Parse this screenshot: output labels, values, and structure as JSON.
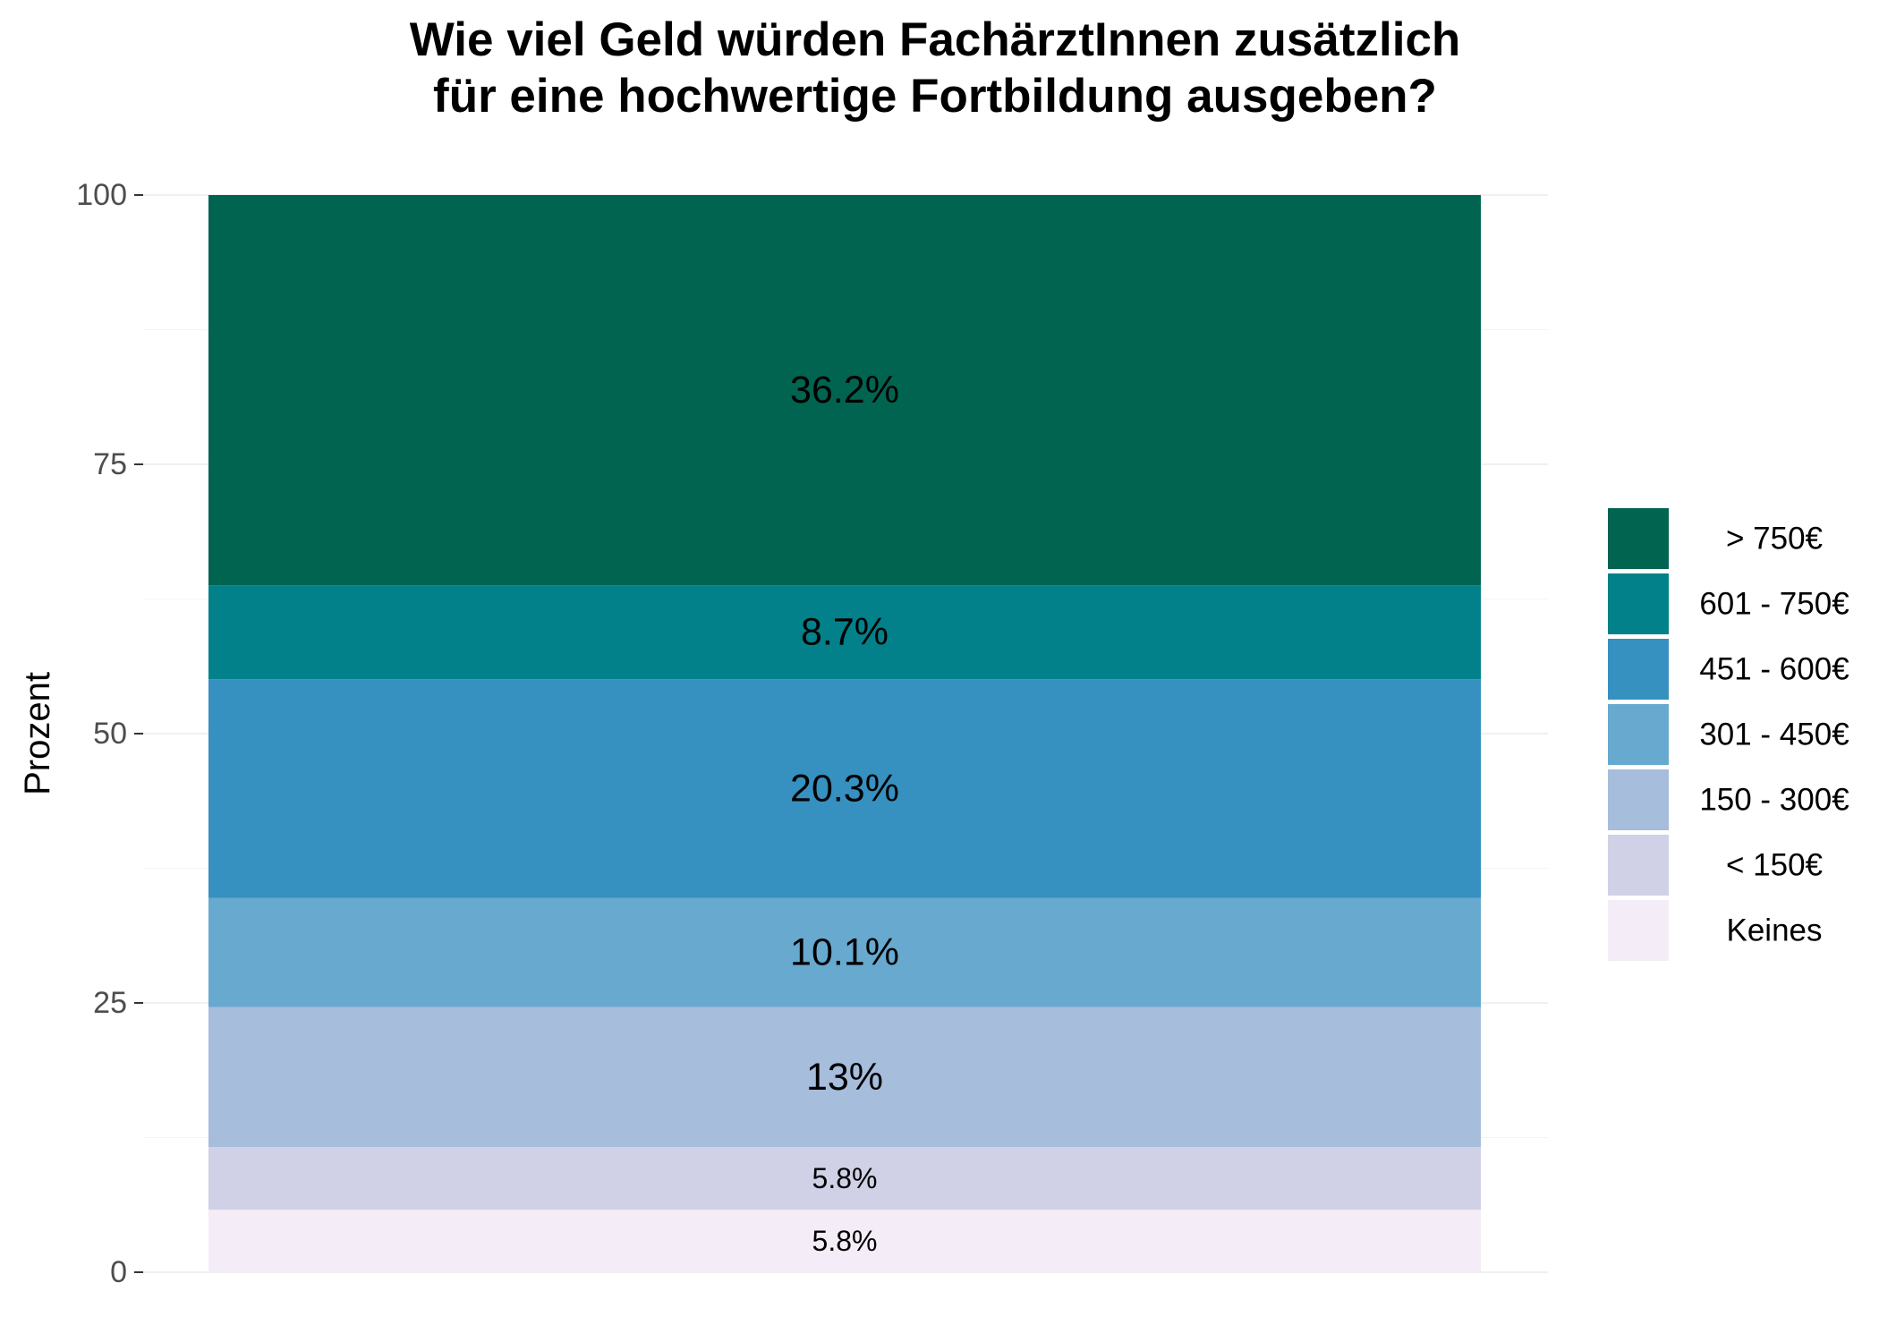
{
  "chart_data": {
    "type": "bar",
    "stacked": true,
    "percent": true,
    "title_lines": [
      "Wie viel Geld würden FachärztInnen zusätzlich",
      "für eine hochwertige Fortbildung ausgeben?"
    ],
    "xlabel": "",
    "ylabel": "Prozent",
    "ylim": [
      0,
      100
    ],
    "yticks": [
      0,
      25,
      50,
      75,
      100
    ],
    "grid": true,
    "legend_position": "right",
    "categories": [
      ""
    ],
    "series": [
      {
        "name": "Keines",
        "value": 5.8,
        "label": "5.8%",
        "color": "#f4ecf6"
      },
      {
        "name": "< 150€",
        "value": 5.8,
        "label": "5.8%",
        "color": "#d0d1e6"
      },
      {
        "name": "150 - 300€",
        "value": 13.0,
        "label": "13%",
        "color": "#a6bddb"
      },
      {
        "name": "301 - 450€",
        "value": 10.1,
        "label": "10.1%",
        "color": "#67a9cf"
      },
      {
        "name": "451 - 600€",
        "value": 20.3,
        "label": "20.3%",
        "color": "#3690c0"
      },
      {
        "name": "601 - 750€",
        "value": 8.7,
        "label": "8.7%",
        "color": "#02818a"
      },
      {
        "name": "> 750€",
        "value": 36.2,
        "label": "36.2%",
        "color": "#016450"
      }
    ]
  }
}
